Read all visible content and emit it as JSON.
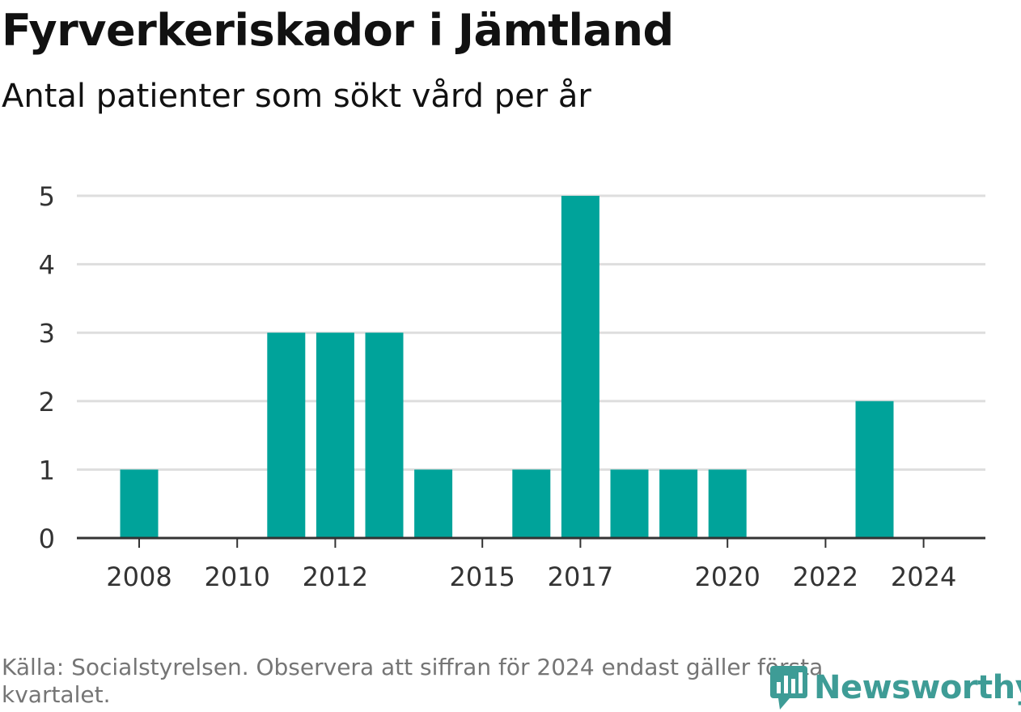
{
  "header": {
    "title": "Fyrverkeriskador i Jämtland",
    "subtitle": "Antal patienter som sökt vård per år"
  },
  "footer": {
    "source": "Källa: Socialstyrelsen. Observera att siffran för 2024 endast gäller första kvartalet."
  },
  "logo": {
    "text": "Newsworthy",
    "icon": "newsworthy-logo-icon",
    "color": "#3e9c96"
  },
  "chart_data": {
    "type": "bar",
    "title": "Fyrverkeriskador i Jämtland",
    "subtitle": "Antal patienter som sökt vård per år",
    "xlabel": "",
    "ylabel": "",
    "categories": [
      2008,
      2009,
      2010,
      2011,
      2012,
      2013,
      2014,
      2015,
      2016,
      2017,
      2018,
      2019,
      2020,
      2021,
      2022,
      2023,
      2024
    ],
    "values": [
      1,
      0,
      0,
      3,
      3,
      3,
      1,
      0,
      1,
      5,
      1,
      1,
      1,
      0,
      0,
      2,
      0
    ],
    "xticks": [
      "2008",
      "2010",
      "2012",
      "2015",
      "2017",
      "2020",
      "2022",
      "2024"
    ],
    "yticks": [
      "0",
      "1",
      "2",
      "3",
      "4",
      "5"
    ],
    "ylim": [
      0,
      5
    ],
    "grid": true,
    "legend": "none",
    "bar_color": "#00a39a"
  }
}
